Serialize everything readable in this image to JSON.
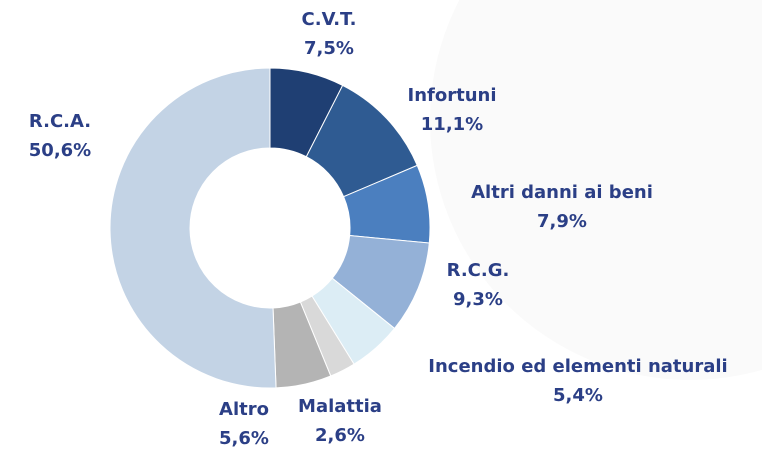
{
  "chart_data": {
    "type": "donut",
    "categories": [
      "C.V.T.",
      "Infortuni",
      "Altri danni ai beni",
      "R.C.G.",
      "Incendio ed elementi naturali",
      "Malattia",
      "Altro",
      "R.C.A."
    ],
    "values": [
      7.5,
      11.1,
      7.9,
      9.3,
      5.4,
      2.6,
      5.6,
      50.6
    ],
    "value_labels": [
      "7,5%",
      "11,1%",
      "7,9%",
      "9,3%",
      "5,4%",
      "2,6%",
      "5,6%",
      "50,6%"
    ],
    "colors": [
      "#1f3f73",
      "#2f5b92",
      "#4b7fbf",
      "#94b1d7",
      "#dcedf5",
      "#d9d9d9",
      "#b4b4b4",
      "#c3d3e5"
    ]
  }
}
